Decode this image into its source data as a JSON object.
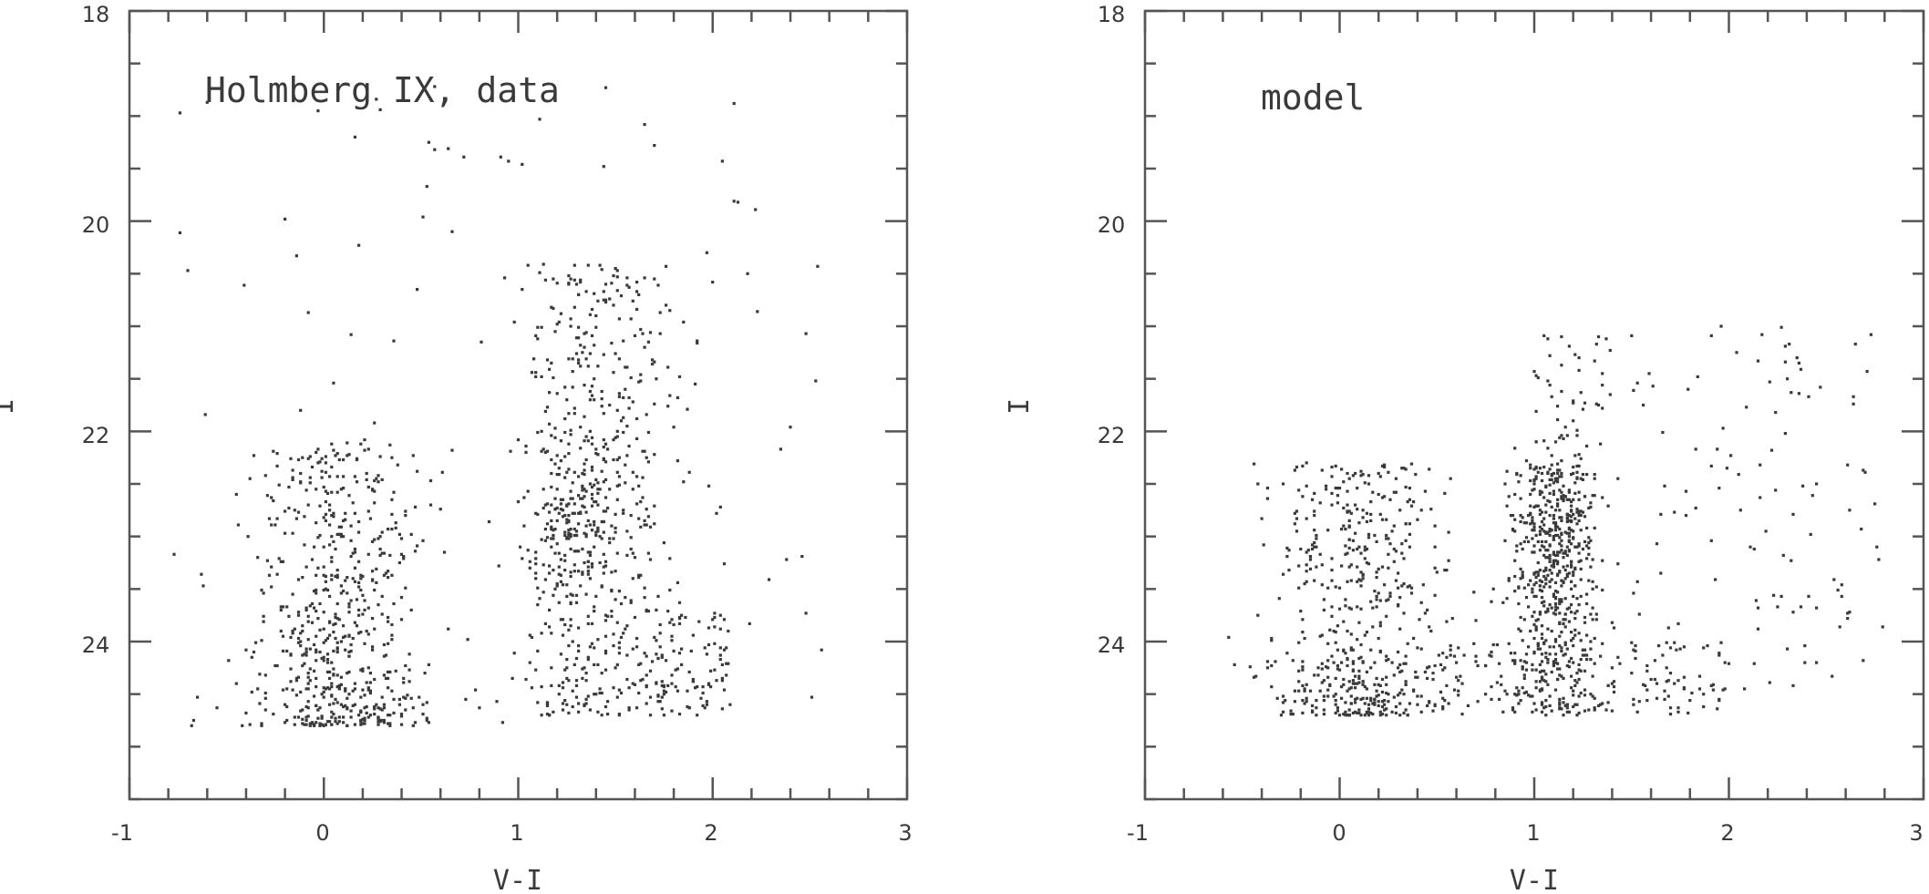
{
  "chart_data": [
    {
      "type": "scatter",
      "annotation": "Holmberg IX, data",
      "xlabel": "V-I",
      "ylabel": "I",
      "xlim": [
        -1,
        3
      ],
      "ylim": [
        25.5,
        18
      ],
      "y_inverted": true,
      "xticks": [
        "-1",
        "0",
        "1",
        "2",
        "3"
      ],
      "yticks": [
        "18",
        "20",
        "22",
        "24"
      ],
      "points": [],
      "population_regions": [
        {
          "x": [
            -0.4,
            0.8
          ],
          "y": [
            22.0,
            24.8
          ],
          "approx_count": 650
        },
        {
          "x": [
            0.6,
            1.9
          ],
          "y": [
            20.3,
            24.8
          ],
          "approx_count": 600
        },
        {
          "x": [
            -0.8,
            2.6
          ],
          "y": [
            18.7,
            24.8
          ],
          "approx_count": 110
        }
      ]
    },
    {
      "type": "scatter",
      "annotation": "model",
      "xlabel": "V-I",
      "ylabel": "I",
      "xlim": [
        -1,
        3
      ],
      "ylim": [
        25.5,
        18
      ],
      "y_inverted": true,
      "xticks": [
        "-1",
        "0",
        "1",
        "2",
        "3"
      ],
      "yticks": [
        "18",
        "20",
        "22",
        "24"
      ],
      "points": [],
      "population_regions": [
        {
          "x": [
            -0.4,
            0.6
          ],
          "y": [
            22.3,
            24.7
          ],
          "approx_count": 600
        },
        {
          "x": [
            0.6,
            1.5
          ],
          "y": [
            21.0,
            24.8
          ],
          "approx_count": 650
        },
        {
          "x": [
            1.5,
            2.8
          ],
          "y": [
            20.5,
            24.7
          ],
          "approx_count": 170
        }
      ]
    }
  ]
}
